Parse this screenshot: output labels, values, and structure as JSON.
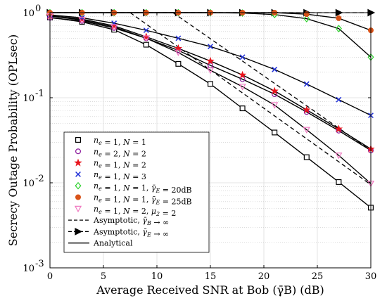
{
  "chart_data": {
    "type": "line",
    "xlabel": "Average Received SNR at Bob (γ̄B) (dB)",
    "ylabel": "Secrecy Outage Probability (OPLsec)",
    "xlim": [
      0,
      30
    ],
    "ylim": [
      0.001,
      1
    ],
    "yscale": "log",
    "grid": true,
    "legend_position": "bottom-left",
    "x_ticks": [
      0,
      5,
      10,
      15,
      20,
      25,
      30
    ],
    "y_ticks": [
      {
        "value": 1,
        "label": "10^0",
        "base": "10",
        "exp": "0"
      },
      {
        "value": 0.1,
        "label": "10^-1",
        "base": "10",
        "exp": "-1"
      },
      {
        "value": 0.01,
        "label": "10^-2",
        "base": "10",
        "exp": "-2"
      },
      {
        "value": 0.001,
        "label": "10^-3",
        "base": "10",
        "exp": "-3"
      }
    ],
    "x": [
      0,
      3,
      6,
      9,
      12,
      15,
      18,
      21,
      24,
      27,
      30
    ],
    "series": [
      {
        "name": "ne = 1, N = 1",
        "marker": "square",
        "color": "#000000",
        "values": [
          0.88,
          0.78,
          0.63,
          0.42,
          0.25,
          0.145,
          0.075,
          0.039,
          0.02,
          0.0102,
          0.0051
        ]
      },
      {
        "name": "ne = 2, N = 2",
        "marker": "circle",
        "color": "#8B1A9B",
        "values": [
          0.87,
          0.8,
          0.66,
          0.5,
          0.36,
          0.24,
          0.165,
          0.11,
          0.068,
          0.041,
          0.024
        ]
      },
      {
        "name": "ne = 1, N = 2",
        "marker": "star",
        "color": "#E8141C",
        "values": [
          0.92,
          0.84,
          0.7,
          0.52,
          0.38,
          0.27,
          0.185,
          0.12,
          0.072,
          0.043,
          0.025
        ]
      },
      {
        "name": "ne = 1, N = 3",
        "marker": "x",
        "color": "#1F2FD6",
        "values": [
          0.94,
          0.87,
          0.75,
          0.62,
          0.5,
          0.4,
          0.3,
          0.215,
          0.145,
          0.095,
          0.062
        ]
      },
      {
        "name": "ne = 1, N = 1, γ̄E = 20dB",
        "marker": "diamond",
        "color": "#2BD12B",
        "values": [
          1.0,
          1.0,
          1.0,
          1.0,
          1.0,
          1.0,
          0.99,
          0.95,
          0.85,
          0.65,
          0.3
        ]
      },
      {
        "name": "ne = 1, N = 1, γ̄E = 25dB",
        "marker": "filled-circle",
        "color": "#D95319",
        "values": [
          1.0,
          1.0,
          1.0,
          1.0,
          1.0,
          1.0,
          1.0,
          1.0,
          0.96,
          0.86,
          0.62
        ]
      },
      {
        "name": "ne = 1, N = 2, μ2 = 2",
        "marker": "triangle-down",
        "color": "#F078C0",
        "values": [
          0.91,
          0.82,
          0.68,
          0.5,
          0.34,
          0.21,
          0.135,
          0.082,
          0.042,
          0.021,
          0.0098
        ]
      }
    ],
    "asymptotic_B": [
      {
        "x": [
          7.5,
          30
        ],
        "values": [
          1.0,
          0.0095
        ]
      },
      {
        "x": [
          11.5,
          30
        ],
        "values": [
          1.0,
          0.024
        ]
      }
    ],
    "asymptotic_E": {
      "x": [
        0,
        30
      ],
      "values": [
        1.0,
        1.0
      ]
    },
    "legend": {
      "entries": [
        {
          "parts": [
            [
              "ne",
              "e"
            ],
            [
              " = 1, "
            ],
            [
              "N",
              ""
            ],
            [
              " = 1"
            ]
          ],
          "marker": "square",
          "color": "#000000"
        },
        {
          "parts": [
            [
              "ne",
              "e"
            ],
            [
              " = 2, "
            ],
            [
              "N",
              ""
            ],
            [
              " = 2"
            ]
          ],
          "marker": "circle",
          "color": "#8B1A9B"
        },
        {
          "parts": [
            [
              "ne",
              "e"
            ],
            [
              " = 1, "
            ],
            [
              "N",
              ""
            ],
            [
              " = 2"
            ]
          ],
          "marker": "star",
          "color": "#E8141C"
        },
        {
          "parts": [
            [
              "ne",
              "e"
            ],
            [
              " = 1, "
            ],
            [
              "N",
              ""
            ],
            [
              " = 3"
            ]
          ],
          "marker": "x",
          "color": "#1F2FD6"
        },
        {
          "parts": [
            [
              "ne",
              "e"
            ],
            [
              " = 1, "
            ],
            [
              "N",
              ""
            ],
            [
              " = 1, "
            ],
            [
              "γ̄E",
              "E"
            ],
            [
              " = 20dB"
            ]
          ],
          "marker": "diamond",
          "color": "#2BD12B"
        },
        {
          "parts": [
            [
              "ne",
              "e"
            ],
            [
              " = 1, "
            ],
            [
              "N",
              ""
            ],
            [
              " = 1, "
            ],
            [
              "γ̄E",
              "E"
            ],
            [
              " = 25dB"
            ]
          ],
          "marker": "filled-circle",
          "color": "#D95319"
        },
        {
          "parts": [
            [
              "ne",
              "e"
            ],
            [
              " = 1, "
            ],
            [
              "N",
              ""
            ],
            [
              " = 2, "
            ],
            [
              "μ2",
              "2"
            ],
            [
              " = 2"
            ]
          ],
          "marker": "triangle-down",
          "color": "#F078C0"
        },
        {
          "parts": [
            [
              "Asymptotic, "
            ],
            [
              "γ̄B",
              "B"
            ],
            [
              " → ∞"
            ]
          ],
          "marker": "dash",
          "color": "#000000"
        },
        {
          "parts": [
            [
              "Asymptotic, "
            ],
            [
              "γ̄E",
              "E"
            ],
            [
              " → ∞"
            ]
          ],
          "marker": "dash-triangle",
          "color": "#000000"
        },
        {
          "parts": [
            [
              "Analytical"
            ]
          ],
          "marker": "line",
          "color": "#000000"
        }
      ]
    }
  }
}
